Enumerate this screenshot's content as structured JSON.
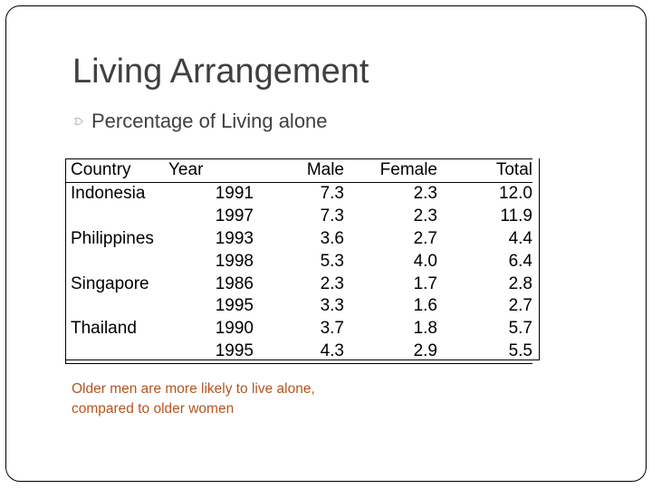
{
  "slide": {
    "title": "Living Arrangement",
    "bullet": "Percentage of Living alone",
    "note": "Older men are  more likely  to live alone, compared to older women"
  },
  "colors": {
    "title": "#404040",
    "note": "#b5541e",
    "bullet_icon": "#c0c0c0"
  },
  "icons": {
    "bullet": "hollow-curved-bullet-icon"
  },
  "table": {
    "headers": [
      "Country",
      "Year",
      "Male",
      "Female",
      "Total"
    ],
    "rows": [
      [
        "Indonesia",
        "1991",
        "7.3",
        "2.3",
        "12.0"
      ],
      [
        "",
        "1997",
        "7.3",
        "2.3",
        "11.9"
      ],
      [
        "Philippines",
        "1993",
        "3.6",
        "2.7",
        "4.4"
      ],
      [
        "",
        "1998",
        "5.3",
        "4.0",
        "6.4"
      ],
      [
        "Singapore",
        "1986",
        "2.3",
        "1.7",
        "2.8"
      ],
      [
        "",
        "1995",
        "3.3",
        "1.6",
        "2.7"
      ],
      [
        "Thailand",
        "1990",
        "3.7",
        "1.8",
        "5.7"
      ],
      [
        "",
        "1995",
        "4.3",
        "2.9",
        "5.5"
      ]
    ]
  }
}
